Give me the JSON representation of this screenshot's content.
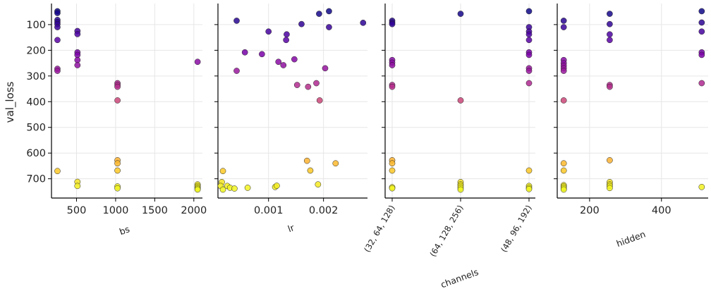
{
  "chart_data": {
    "type": "scatter",
    "ylabel": "val_loss",
    "ylim": [
      775,
      18
    ],
    "y_inverted": true,
    "yticks": [
      100,
      200,
      300,
      400,
      500,
      600,
      700
    ],
    "ytick_labels": [
      "100",
      "200",
      "300",
      "400",
      "500",
      "600",
      "700"
    ],
    "grid": true,
    "colormap": "plasma (by val_loss: low = dark purple, high = yellow)",
    "colors": {
      "low": "#2c0594",
      "mid": "#b52f8c",
      "high": "#f0f921",
      "grid": "#e6e6e6",
      "axis": "#000000"
    },
    "panels": [
      {
        "xlabel": "bs",
        "xscale": "linear",
        "xlim": [
          180,
          2110
        ],
        "xticks": [
          500,
          1000,
          1500,
          2000
        ],
        "xtick_labels": [
          "500",
          "1000",
          "1500",
          "2000"
        ],
        "points": [
          {
            "x": 256,
            "y": 48
          },
          {
            "x": 256,
            "y": 55
          },
          {
            "x": 256,
            "y": 82
          },
          {
            "x": 256,
            "y": 90
          },
          {
            "x": 256,
            "y": 98
          },
          {
            "x": 256,
            "y": 110
          },
          {
            "x": 256,
            "y": 160
          },
          {
            "x": 256,
            "y": 272
          },
          {
            "x": 256,
            "y": 280
          },
          {
            "x": 256,
            "y": 670
          },
          {
            "x": 512,
            "y": 125
          },
          {
            "x": 512,
            "y": 137
          },
          {
            "x": 512,
            "y": 208
          },
          {
            "x": 512,
            "y": 218
          },
          {
            "x": 512,
            "y": 238
          },
          {
            "x": 512,
            "y": 258
          },
          {
            "x": 512,
            "y": 712
          },
          {
            "x": 512,
            "y": 728
          },
          {
            "x": 1024,
            "y": 328
          },
          {
            "x": 1024,
            "y": 335
          },
          {
            "x": 1024,
            "y": 342
          },
          {
            "x": 1024,
            "y": 395
          },
          {
            "x": 1024,
            "y": 628
          },
          {
            "x": 1024,
            "y": 640
          },
          {
            "x": 1024,
            "y": 668
          },
          {
            "x": 1024,
            "y": 730
          },
          {
            "x": 1024,
            "y": 737
          },
          {
            "x": 2048,
            "y": 245
          },
          {
            "x": 2048,
            "y": 722
          },
          {
            "x": 2048,
            "y": 728
          },
          {
            "x": 2048,
            "y": 733
          },
          {
            "x": 2048,
            "y": 738
          },
          {
            "x": 2048,
            "y": 742
          }
        ]
      },
      {
        "xlabel": "lr",
        "xscale": "linear",
        "xlim": [
          8e-05,
          0.0028
        ],
        "xticks": [
          0.001,
          0.002
        ],
        "xtick_labels": [
          "0.001",
          "0.002"
        ],
        "points": [
          {
            "x": 0.00042,
            "y": 85
          },
          {
            "x": 0.00042,
            "y": 280
          },
          {
            "x": 0.00057,
            "y": 208
          },
          {
            "x": 0.00088,
            "y": 215
          },
          {
            "x": 0.001,
            "y": 127
          },
          {
            "x": 0.00118,
            "y": 245
          },
          {
            "x": 0.00127,
            "y": 258
          },
          {
            "x": 0.00133,
            "y": 138
          },
          {
            "x": 0.00132,
            "y": 160
          },
          {
            "x": 0.00147,
            "y": 235
          },
          {
            "x": 0.00152,
            "y": 335
          },
          {
            "x": 0.0016,
            "y": 98
          },
          {
            "x": 0.00172,
            "y": 342
          },
          {
            "x": 0.00187,
            "y": 328
          },
          {
            "x": 0.00192,
            "y": 58
          },
          {
            "x": 0.00193,
            "y": 395
          },
          {
            "x": 0.00203,
            "y": 270
          },
          {
            "x": 0.0021,
            "y": 48
          },
          {
            "x": 0.0021,
            "y": 110
          },
          {
            "x": 0.00272,
            "y": 93
          },
          {
            "x": 0.00017,
            "y": 670
          },
          {
            "x": 0.00015,
            "y": 713
          },
          {
            "x": 0.00013,
            "y": 728
          },
          {
            "x": 0.00017,
            "y": 742
          },
          {
            "x": 0.00025,
            "y": 728
          },
          {
            "x": 0.0003,
            "y": 735
          },
          {
            "x": 0.00038,
            "y": 738
          },
          {
            "x": 0.00062,
            "y": 735
          },
          {
            "x": 0.00112,
            "y": 732
          },
          {
            "x": 0.00115,
            "y": 727
          },
          {
            "x": 0.0017,
            "y": 630
          },
          {
            "x": 0.00176,
            "y": 668
          },
          {
            "x": 0.0019,
            "y": 722
          },
          {
            "x": 0.00222,
            "y": 640
          }
        ]
      },
      {
        "xlabel": "channels",
        "xscale": "categorical",
        "categories": [
          "(32, 64, 128)",
          "(64, 128, 256)",
          "(48, 96, 192)"
        ],
        "points": [
          {
            "x": 0,
            "y": 85
          },
          {
            "x": 0,
            "y": 92
          },
          {
            "x": 0,
            "y": 98
          },
          {
            "x": 0,
            "y": 238
          },
          {
            "x": 0,
            "y": 248
          },
          {
            "x": 0,
            "y": 258
          },
          {
            "x": 0,
            "y": 335
          },
          {
            "x": 0,
            "y": 342
          },
          {
            "x": 0,
            "y": 628
          },
          {
            "x": 0,
            "y": 640
          },
          {
            "x": 0,
            "y": 668
          },
          {
            "x": 0,
            "y": 733
          },
          {
            "x": 0,
            "y": 737
          },
          {
            "x": 1,
            "y": 58
          },
          {
            "x": 1,
            "y": 395
          },
          {
            "x": 1,
            "y": 713
          },
          {
            "x": 1,
            "y": 722
          },
          {
            "x": 1,
            "y": 728
          },
          {
            "x": 1,
            "y": 735
          },
          {
            "x": 1,
            "y": 742
          },
          {
            "x": 2,
            "y": 48
          },
          {
            "x": 2,
            "y": 110
          },
          {
            "x": 2,
            "y": 127
          },
          {
            "x": 2,
            "y": 138
          },
          {
            "x": 2,
            "y": 160
          },
          {
            "x": 2,
            "y": 208
          },
          {
            "x": 2,
            "y": 218
          },
          {
            "x": 2,
            "y": 270
          },
          {
            "x": 2,
            "y": 280
          },
          {
            "x": 2,
            "y": 328
          },
          {
            "x": 2,
            "y": 668
          },
          {
            "x": 2,
            "y": 728
          },
          {
            "x": 2,
            "y": 735
          },
          {
            "x": 2,
            "y": 740
          }
        ]
      },
      {
        "xlabel": "hidden",
        "xscale": "linear",
        "xlim": [
          110,
          530
        ],
        "xticks": [
          200,
          400
        ],
        "xtick_labels": [
          "200",
          "400"
        ],
        "points": [
          {
            "x": 128,
            "y": 85
          },
          {
            "x": 128,
            "y": 110
          },
          {
            "x": 128,
            "y": 238
          },
          {
            "x": 128,
            "y": 250
          },
          {
            "x": 128,
            "y": 260
          },
          {
            "x": 128,
            "y": 270
          },
          {
            "x": 128,
            "y": 280
          },
          {
            "x": 128,
            "y": 395
          },
          {
            "x": 128,
            "y": 640
          },
          {
            "x": 128,
            "y": 668
          },
          {
            "x": 128,
            "y": 725
          },
          {
            "x": 128,
            "y": 730
          },
          {
            "x": 128,
            "y": 736
          },
          {
            "x": 128,
            "y": 742
          },
          {
            "x": 256,
            "y": 58
          },
          {
            "x": 256,
            "y": 98
          },
          {
            "x": 256,
            "y": 138
          },
          {
            "x": 256,
            "y": 160
          },
          {
            "x": 256,
            "y": 335
          },
          {
            "x": 256,
            "y": 342
          },
          {
            "x": 256,
            "y": 628
          },
          {
            "x": 256,
            "y": 713
          },
          {
            "x": 256,
            "y": 722
          },
          {
            "x": 256,
            "y": 728
          },
          {
            "x": 256,
            "y": 736
          },
          {
            "x": 512,
            "y": 48
          },
          {
            "x": 512,
            "y": 92
          },
          {
            "x": 512,
            "y": 127
          },
          {
            "x": 512,
            "y": 208
          },
          {
            "x": 512,
            "y": 218
          },
          {
            "x": 512,
            "y": 328
          },
          {
            "x": 512,
            "y": 732
          }
        ]
      }
    ]
  }
}
